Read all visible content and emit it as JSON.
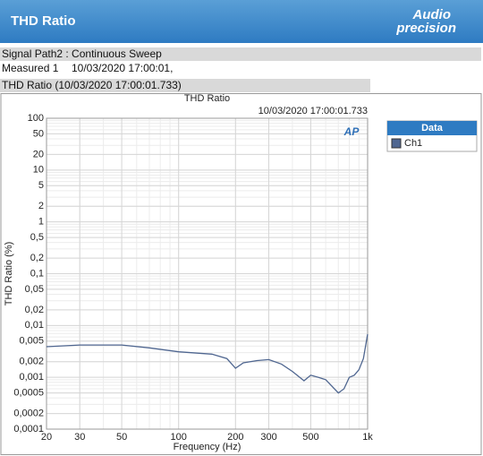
{
  "header": {
    "title": "THD Ratio",
    "logo_top": "Audio",
    "logo_bottom": "precision"
  },
  "info": {
    "signal_path": "Signal Path2 : Continuous Sweep",
    "measured_label": "Measured 1",
    "measured_time": "10/03/2020 17:00:01,",
    "section": "THD Ratio (10/03/2020 17:00:01.733)"
  },
  "chart_data": {
    "type": "line",
    "title": "THD Ratio",
    "subtitle": "10/03/2020 17:00:01.733",
    "badge": "AP",
    "x_label": "Frequency (Hz)",
    "y_label": "THD Ratio (%)",
    "x_log": true,
    "y_log": true,
    "grid": true,
    "legend_position": "right",
    "legend_title": "Data",
    "xlim": [
      20,
      1000
    ],
    "ylim": [
      0.0001,
      100
    ],
    "xticks": [
      20,
      30,
      50,
      100,
      200,
      300,
      500,
      {
        "value": 1000,
        "label": "1k"
      }
    ],
    "yticks": [
      100,
      50,
      20,
      10,
      5,
      2,
      1,
      {
        "value": 0.5,
        "label": "0,5"
      },
      {
        "value": 0.2,
        "label": "0,2"
      },
      {
        "value": 0.1,
        "label": "0,1"
      },
      {
        "value": 0.05,
        "label": "0,05"
      },
      {
        "value": 0.02,
        "label": "0,02"
      },
      {
        "value": 0.01,
        "label": "0,01"
      },
      {
        "value": 0.005,
        "label": "0,005"
      },
      {
        "value": 0.002,
        "label": "0,002"
      },
      {
        "value": 0.001,
        "label": "0,001"
      },
      {
        "value": 0.0005,
        "label": "0,0005"
      },
      {
        "value": 0.0002,
        "label": "0,0002"
      },
      {
        "value": 0.0001,
        "label": "0,0001"
      }
    ],
    "x": [
      20,
      30,
      50,
      70,
      100,
      150,
      180,
      200,
      220,
      260,
      300,
      350,
      400,
      461,
      500,
      550,
      600,
      700,
      750,
      800,
      850,
      900,
      950,
      1000
    ],
    "series": [
      {
        "name": "Ch1",
        "color": "#4f6690",
        "values": [
          0.0039,
          0.0042,
          0.0042,
          0.0037,
          0.0031,
          0.0028,
          0.0023,
          0.0015,
          0.0019,
          0.0021,
          0.0022,
          0.0018,
          0.0013,
          0.00086,
          0.0011,
          0.001,
          0.0009,
          0.0005,
          0.0006,
          0.001,
          0.0011,
          0.0014,
          0.0023,
          0.0068
        ]
      }
    ]
  }
}
